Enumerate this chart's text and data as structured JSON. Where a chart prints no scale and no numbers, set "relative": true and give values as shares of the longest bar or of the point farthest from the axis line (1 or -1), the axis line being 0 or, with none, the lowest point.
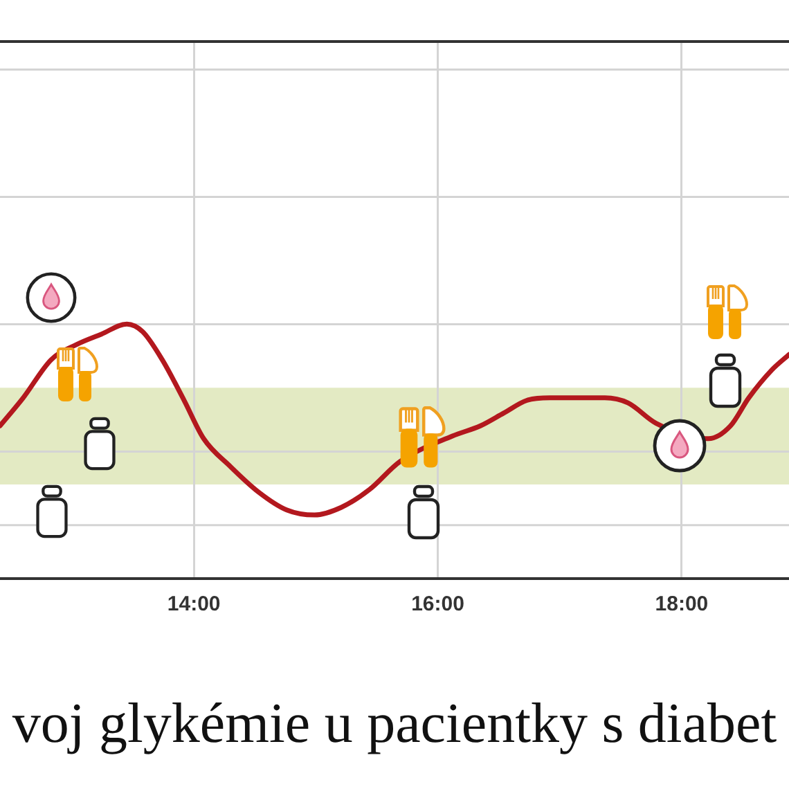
{
  "chart_data": {
    "type": "line",
    "relative": true,
    "x": [
      12.41,
      12.6,
      12.83,
      13.04,
      13.24,
      13.45,
      13.58,
      13.74,
      13.92,
      14.08,
      14.3,
      14.53,
      14.76,
      14.99,
      15.21,
      15.44,
      15.69,
      16.12,
      16.35,
      16.54,
      16.73,
      16.92,
      17.18,
      17.37,
      17.56,
      17.79,
      18.22,
      18.4,
      18.55,
      18.74,
      18.88
    ],
    "values": [
      0.6,
      0.71,
      0.86,
      0.92,
      0.96,
      1,
      0.97,
      0.86,
      0.7,
      0.55,
      0.44,
      0.34,
      0.27,
      0.25,
      0.28,
      0.35,
      0.46,
      0.56,
      0.6,
      0.65,
      0.7,
      0.71,
      0.71,
      0.71,
      0.69,
      0.61,
      0.55,
      0.6,
      0.71,
      0.82,
      0.88
    ],
    "color": "#b3181e",
    "xlim": [
      12.41,
      18.88
    ],
    "xticks": [
      {
        "value": 14,
        "label": "14:00"
      },
      {
        "value": 16,
        "label": "16:00"
      },
      {
        "value": 18,
        "label": "18:00"
      }
    ],
    "bands": [
      {
        "axis": "y",
        "from": 0.37,
        "to": 0.75,
        "color": "#e3eac3"
      }
    ],
    "ref_lines": [
      {
        "axis": "y",
        "value": 0.21,
        "color": "#d4d4d4"
      }
    ],
    "grid": true,
    "annotations": [
      "voj glykémie u pacientky s diabet"
    ]
  }
}
